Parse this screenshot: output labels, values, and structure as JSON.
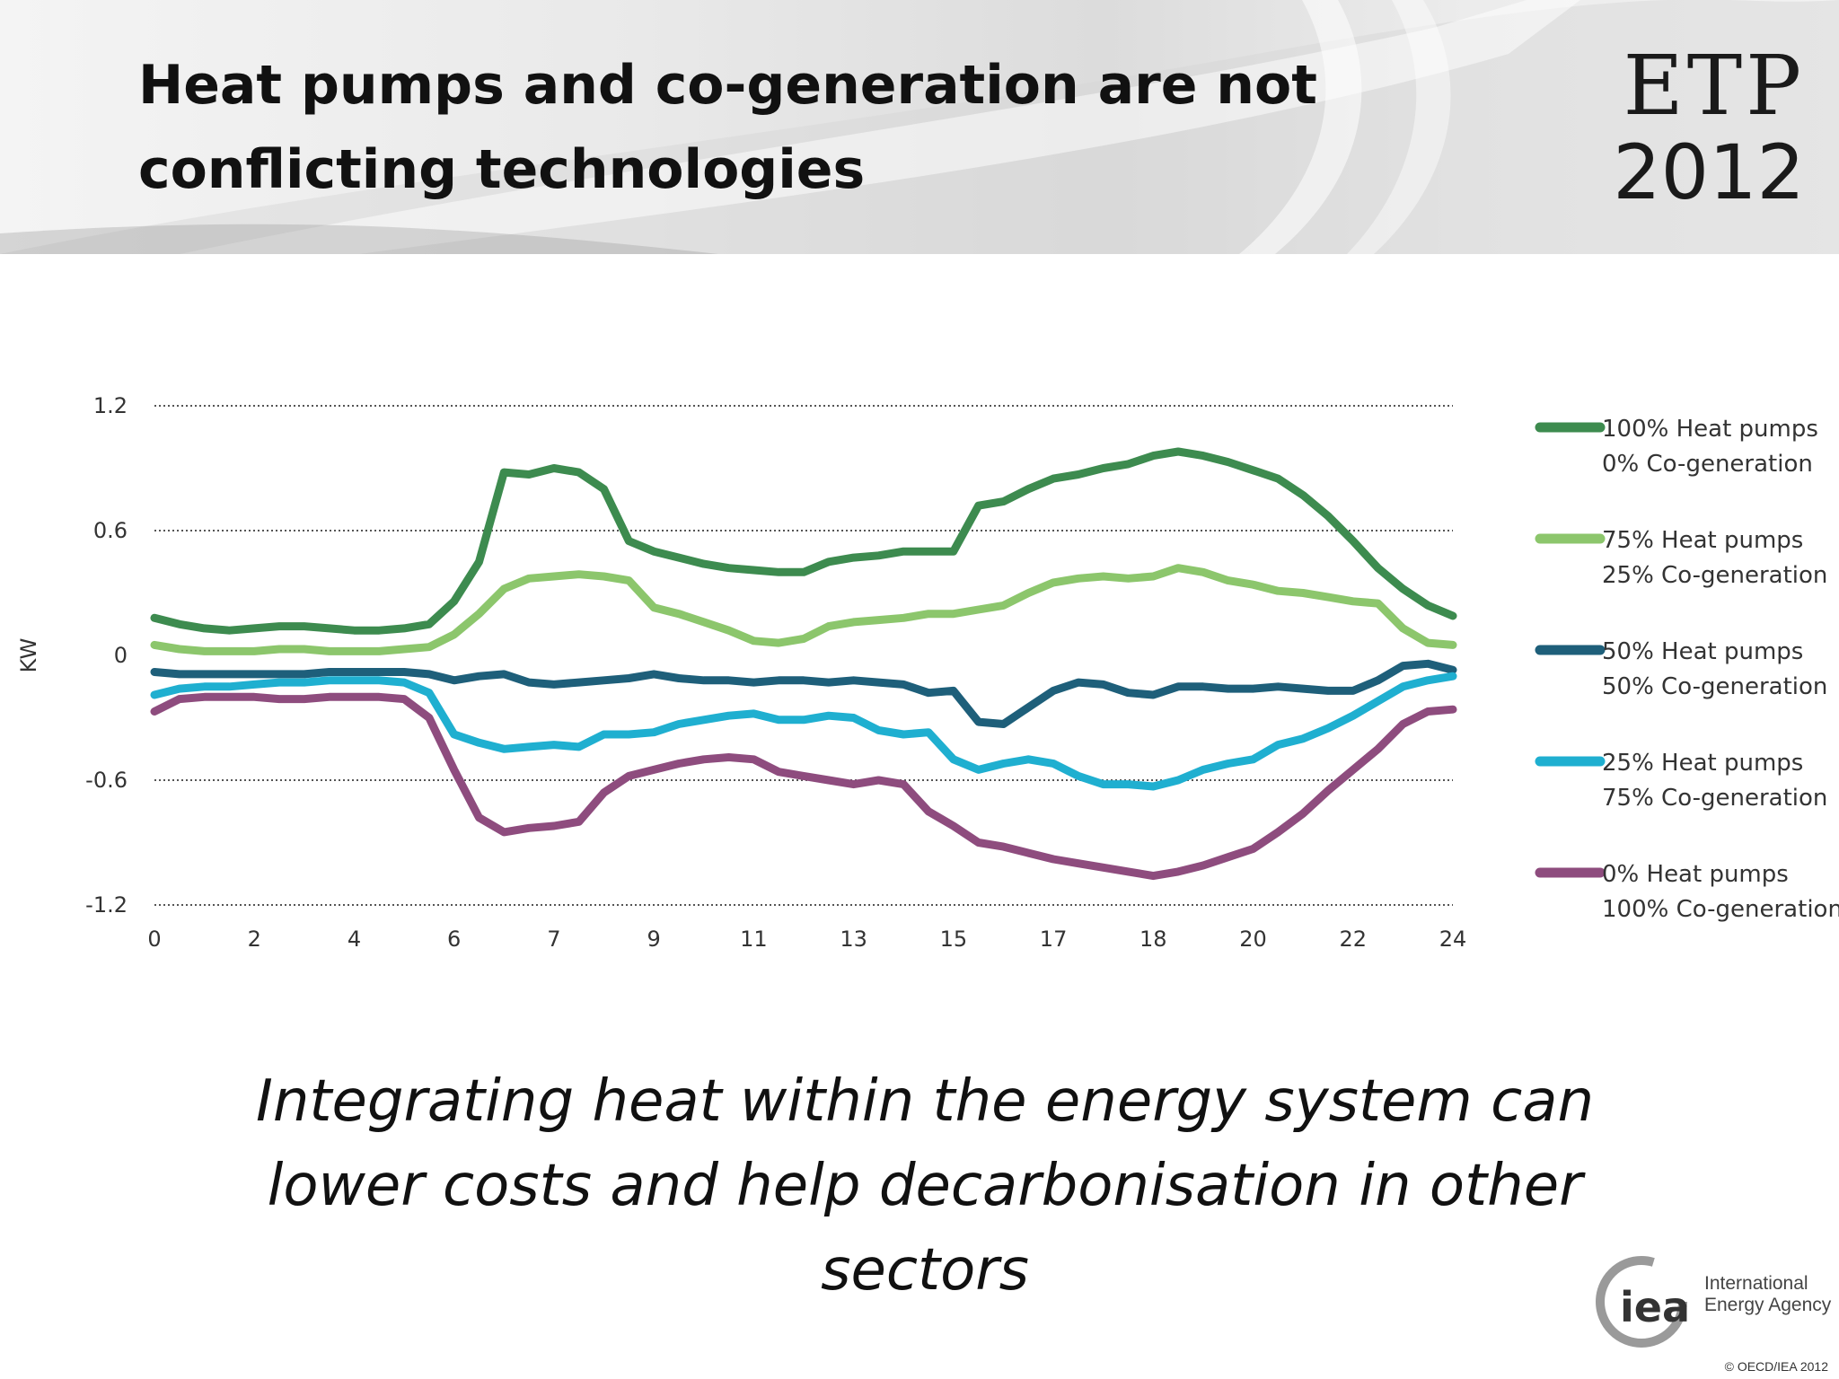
{
  "header": {
    "title": "Heat pumps and co-generation are not conflicting technologies",
    "logo_line1": "ETP",
    "logo_line2": "2012"
  },
  "chart_data": {
    "type": "line",
    "ylabel": "KW",
    "ylim": [
      -1.2,
      1.2
    ],
    "xlim": [
      0,
      26
    ],
    "y_ticks": [
      "1.2",
      "0.6",
      "0",
      "-0.6",
      "-1.2"
    ],
    "x_tick_labels": [
      "0",
      "2",
      "4",
      "6",
      "7",
      "9",
      "11",
      "13",
      "15",
      "17",
      "18",
      "20",
      "22",
      "24"
    ],
    "grid": "horizontal dotted",
    "legend_position": "right",
    "series": [
      {
        "name": "100% Heat pumps 0% Co-generation",
        "legend_lines": [
          "100% Heat pumps",
          "0% Co-generation"
        ],
        "color": "#3d8b4f",
        "x": [
          0,
          0.5,
          1,
          1.5,
          2,
          2.5,
          3,
          3.5,
          4,
          4.5,
          5,
          5.5,
          6,
          6.5,
          7,
          7.5,
          8,
          8.5,
          9,
          9.5,
          10,
          10.5,
          11,
          11.5,
          12,
          12.5,
          13,
          13.5,
          14,
          14.5,
          15,
          15.5,
          16,
          16.5,
          17,
          17.5,
          18,
          18.5,
          19,
          19.5,
          20,
          20.5,
          21,
          21.5,
          22,
          22.5,
          23,
          23.5,
          24,
          24.5,
          25,
          25.5,
          26
        ],
        "values": [
          0.18,
          0.15,
          0.13,
          0.12,
          0.13,
          0.14,
          0.14,
          0.13,
          0.12,
          0.12,
          0.13,
          0.15,
          0.26,
          0.45,
          0.88,
          0.87,
          0.9,
          0.88,
          0.8,
          0.55,
          0.5,
          0.47,
          0.44,
          0.42,
          0.41,
          0.4,
          0.4,
          0.45,
          0.47,
          0.48,
          0.5,
          0.5,
          0.5,
          0.72,
          0.74,
          0.8,
          0.85,
          0.87,
          0.9,
          0.92,
          0.96,
          0.98,
          0.96,
          0.93,
          0.89,
          0.85,
          0.77,
          0.67,
          0.55,
          0.42,
          0.32,
          0.24,
          0.19
        ]
      },
      {
        "name": "75% Heat pumps 25% Co-generation",
        "legend_lines": [
          "75% Heat pumps",
          "25% Co-generation"
        ],
        "color": "#8cc66c",
        "x": [
          0,
          0.5,
          1,
          1.5,
          2,
          2.5,
          3,
          3.5,
          4,
          4.5,
          5,
          5.5,
          6,
          6.5,
          7,
          7.5,
          8,
          8.5,
          9,
          9.5,
          10,
          10.5,
          11,
          11.5,
          12,
          12.5,
          13,
          13.5,
          14,
          14.5,
          15,
          15.5,
          16,
          16.5,
          17,
          17.5,
          18,
          18.5,
          19,
          19.5,
          20,
          20.5,
          21,
          21.5,
          22,
          22.5,
          23,
          23.5,
          24,
          24.5,
          25,
          25.5,
          26
        ],
        "values": [
          0.05,
          0.03,
          0.02,
          0.02,
          0.02,
          0.03,
          0.03,
          0.02,
          0.02,
          0.02,
          0.03,
          0.04,
          0.1,
          0.2,
          0.32,
          0.37,
          0.38,
          0.39,
          0.38,
          0.36,
          0.23,
          0.2,
          0.16,
          0.12,
          0.07,
          0.06,
          0.08,
          0.14,
          0.16,
          0.17,
          0.18,
          0.2,
          0.2,
          0.22,
          0.24,
          0.3,
          0.35,
          0.37,
          0.38,
          0.37,
          0.38,
          0.42,
          0.4,
          0.36,
          0.34,
          0.31,
          0.3,
          0.28,
          0.26,
          0.25,
          0.13,
          0.06,
          0.05
        ]
      },
      {
        "name": "50% Heat pumps 50% Co-generation",
        "legend_lines": [
          "50% Heat pumps",
          "50% Co-generation"
        ],
        "color": "#1e5f7a",
        "x": [
          0,
          0.5,
          1,
          1.5,
          2,
          2.5,
          3,
          3.5,
          4,
          4.5,
          5,
          5.5,
          6,
          6.5,
          7,
          7.5,
          8,
          8.5,
          9,
          9.5,
          10,
          10.5,
          11,
          11.5,
          12,
          12.5,
          13,
          13.5,
          14,
          14.5,
          15,
          15.5,
          16,
          16.5,
          17,
          17.5,
          18,
          18.5,
          19,
          19.5,
          20,
          20.5,
          21,
          21.5,
          22,
          22.5,
          23,
          23.5,
          24,
          24.5,
          25,
          25.5,
          26
        ],
        "values": [
          -0.08,
          -0.09,
          -0.09,
          -0.09,
          -0.09,
          -0.09,
          -0.09,
          -0.08,
          -0.08,
          -0.08,
          -0.08,
          -0.09,
          -0.12,
          -0.1,
          -0.09,
          -0.13,
          -0.14,
          -0.13,
          -0.12,
          -0.11,
          -0.09,
          -0.11,
          -0.12,
          -0.12,
          -0.13,
          -0.12,
          -0.12,
          -0.13,
          -0.12,
          -0.13,
          -0.14,
          -0.18,
          -0.17,
          -0.32,
          -0.33,
          -0.25,
          -0.17,
          -0.13,
          -0.14,
          -0.18,
          -0.19,
          -0.15,
          -0.15,
          -0.16,
          -0.16,
          -0.15,
          -0.16,
          -0.17,
          -0.17,
          -0.12,
          -0.05,
          -0.04,
          -0.07
        ]
      },
      {
        "name": "25% Heat pumps 75% Co-generation",
        "legend_lines": [
          "25% Heat pumps",
          "75% Co-generation"
        ],
        "color": "#1fafd0",
        "x": [
          0,
          0.5,
          1,
          1.5,
          2,
          2.5,
          3,
          3.5,
          4,
          4.5,
          5,
          5.5,
          6,
          6.5,
          7,
          7.5,
          8,
          8.5,
          9,
          9.5,
          10,
          10.5,
          11,
          11.5,
          12,
          12.5,
          13,
          13.5,
          14,
          14.5,
          15,
          15.5,
          16,
          16.5,
          17,
          17.5,
          18,
          18.5,
          19,
          19.5,
          20,
          20.5,
          21,
          21.5,
          22,
          22.5,
          23,
          23.5,
          24,
          24.5,
          25,
          25.5,
          26
        ],
        "values": [
          -0.19,
          -0.16,
          -0.15,
          -0.15,
          -0.14,
          -0.13,
          -0.13,
          -0.12,
          -0.12,
          -0.12,
          -0.13,
          -0.18,
          -0.38,
          -0.42,
          -0.45,
          -0.44,
          -0.43,
          -0.44,
          -0.38,
          -0.38,
          -0.37,
          -0.33,
          -0.31,
          -0.29,
          -0.28,
          -0.31,
          -0.31,
          -0.29,
          -0.3,
          -0.36,
          -0.38,
          -0.37,
          -0.5,
          -0.55,
          -0.52,
          -0.5,
          -0.52,
          -0.58,
          -0.62,
          -0.62,
          -0.63,
          -0.6,
          -0.55,
          -0.52,
          -0.5,
          -0.43,
          -0.4,
          -0.35,
          -0.29,
          -0.22,
          -0.15,
          -0.12,
          -0.1
        ]
      },
      {
        "name": "0% Heat pumps 100% Co-generation",
        "legend_lines": [
          "0% Heat pumps",
          "100% Co-generation"
        ],
        "color": "#8e4c7e",
        "x": [
          0,
          0.5,
          1,
          1.5,
          2,
          2.5,
          3,
          3.5,
          4,
          4.5,
          5,
          5.5,
          6,
          6.5,
          7,
          7.5,
          8,
          8.5,
          9,
          9.5,
          10,
          10.5,
          11,
          11.5,
          12,
          12.5,
          13,
          13.5,
          14,
          14.5,
          15,
          15.5,
          16,
          16.5,
          17,
          17.5,
          18,
          18.5,
          19,
          19.5,
          20,
          20.5,
          21,
          21.5,
          22,
          22.5,
          23,
          23.5,
          24,
          24.5,
          25,
          25.5,
          26
        ],
        "values": [
          -0.27,
          -0.21,
          -0.2,
          -0.2,
          -0.2,
          -0.21,
          -0.21,
          -0.2,
          -0.2,
          -0.2,
          -0.21,
          -0.3,
          -0.55,
          -0.78,
          -0.85,
          -0.83,
          -0.82,
          -0.8,
          -0.66,
          -0.58,
          -0.55,
          -0.52,
          -0.5,
          -0.49,
          -0.5,
          -0.56,
          -0.58,
          -0.6,
          -0.62,
          -0.6,
          -0.62,
          -0.75,
          -0.82,
          -0.9,
          -0.92,
          -0.95,
          -0.98,
          -1.0,
          -1.02,
          -1.04,
          -1.06,
          -1.04,
          -1.01,
          -0.97,
          -0.93,
          -0.85,
          -0.76,
          -0.65,
          -0.55,
          -0.45,
          -0.33,
          -0.27,
          -0.26
        ]
      }
    ]
  },
  "caption": {
    "line1": "Integrating heat within the energy system can",
    "line2": "lower costs and help decarbonisation in other",
    "line3": "sectors"
  },
  "footer": {
    "iea_mark": "iea",
    "iea_name_line1": "International",
    "iea_name_line2": "Energy Agency",
    "copyright": "© OECD/IEA 2012"
  }
}
